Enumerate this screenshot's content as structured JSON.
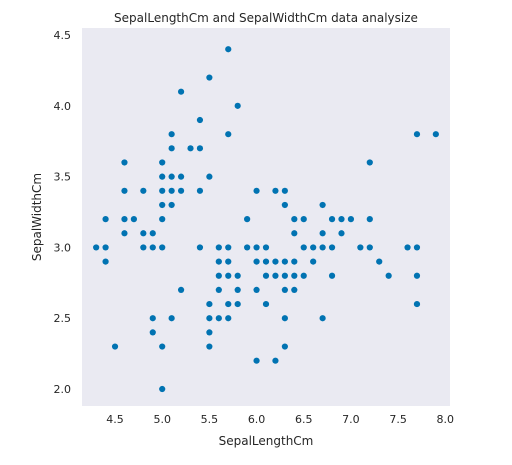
{
  "chart_data": {
    "type": "scatter",
    "title": "SepalLengthCm and SepalWidthCm data analysize",
    "xlabel": "SepalLengthCm",
    "ylabel": "SepalWidthCm",
    "xlim": [
      4.15,
      8.05
    ],
    "ylim": [
      1.88,
      4.55
    ],
    "xticks": [
      "4.5",
      "5.0",
      "5.5",
      "6.0",
      "6.5",
      "7.0",
      "7.5",
      "8.0"
    ],
    "yticks": [
      "2.0",
      "2.5",
      "3.0",
      "3.5",
      "4.0",
      "4.5"
    ],
    "grid": false,
    "colors": {
      "plot_background": "#eaeaf2",
      "marker": "#0173b2"
    },
    "points": [
      [
        4.3,
        3.0
      ],
      [
        4.4,
        2.9
      ],
      [
        4.4,
        3.0
      ],
      [
        4.4,
        3.2
      ],
      [
        4.5,
        2.3
      ],
      [
        4.6,
        3.1
      ],
      [
        4.6,
        3.2
      ],
      [
        4.6,
        3.4
      ],
      [
        4.6,
        3.6
      ],
      [
        4.7,
        3.2
      ],
      [
        4.8,
        3.0
      ],
      [
        4.8,
        3.1
      ],
      [
        4.8,
        3.4
      ],
      [
        4.9,
        2.4
      ],
      [
        4.9,
        2.5
      ],
      [
        4.9,
        3.0
      ],
      [
        4.9,
        3.1
      ],
      [
        5.0,
        2.0
      ],
      [
        5.0,
        2.3
      ],
      [
        5.0,
        3.0
      ],
      [
        5.0,
        3.2
      ],
      [
        5.0,
        3.3
      ],
      [
        5.0,
        3.4
      ],
      [
        5.0,
        3.5
      ],
      [
        5.0,
        3.6
      ],
      [
        5.1,
        2.5
      ],
      [
        5.1,
        3.3
      ],
      [
        5.1,
        3.4
      ],
      [
        5.1,
        3.5
      ],
      [
        5.1,
        3.7
      ],
      [
        5.1,
        3.8
      ],
      [
        5.2,
        2.7
      ],
      [
        5.2,
        3.4
      ],
      [
        5.2,
        3.5
      ],
      [
        5.2,
        4.1
      ],
      [
        5.3,
        3.7
      ],
      [
        5.4,
        3.0
      ],
      [
        5.4,
        3.4
      ],
      [
        5.4,
        3.7
      ],
      [
        5.4,
        3.9
      ],
      [
        5.5,
        2.3
      ],
      [
        5.5,
        2.4
      ],
      [
        5.5,
        2.5
      ],
      [
        5.5,
        2.6
      ],
      [
        5.5,
        3.5
      ],
      [
        5.5,
        4.2
      ],
      [
        5.6,
        2.5
      ],
      [
        5.6,
        2.7
      ],
      [
        5.6,
        2.8
      ],
      [
        5.6,
        2.9
      ],
      [
        5.6,
        3.0
      ],
      [
        5.7,
        2.5
      ],
      [
        5.7,
        2.6
      ],
      [
        5.7,
        2.8
      ],
      [
        5.7,
        2.9
      ],
      [
        5.7,
        3.0
      ],
      [
        5.7,
        3.8
      ],
      [
        5.7,
        4.4
      ],
      [
        5.8,
        2.6
      ],
      [
        5.8,
        2.7
      ],
      [
        5.8,
        2.8
      ],
      [
        5.8,
        4.0
      ],
      [
        5.9,
        3.0
      ],
      [
        5.9,
        3.2
      ],
      [
        6.0,
        2.2
      ],
      [
        6.0,
        2.7
      ],
      [
        6.0,
        2.9
      ],
      [
        6.0,
        3.0
      ],
      [
        6.0,
        3.4
      ],
      [
        6.1,
        2.6
      ],
      [
        6.1,
        2.8
      ],
      [
        6.1,
        2.9
      ],
      [
        6.1,
        3.0
      ],
      [
        6.2,
        2.2
      ],
      [
        6.2,
        2.8
      ],
      [
        6.2,
        2.9
      ],
      [
        6.2,
        3.4
      ],
      [
        6.3,
        2.3
      ],
      [
        6.3,
        2.5
      ],
      [
        6.3,
        2.7
      ],
      [
        6.3,
        2.8
      ],
      [
        6.3,
        2.9
      ],
      [
        6.3,
        3.3
      ],
      [
        6.3,
        3.4
      ],
      [
        6.4,
        2.7
      ],
      [
        6.4,
        2.8
      ],
      [
        6.4,
        2.9
      ],
      [
        6.4,
        3.1
      ],
      [
        6.4,
        3.2
      ],
      [
        6.5,
        2.8
      ],
      [
        6.5,
        3.0
      ],
      [
        6.5,
        3.2
      ],
      [
        6.6,
        2.9
      ],
      [
        6.6,
        3.0
      ],
      [
        6.7,
        2.5
      ],
      [
        6.7,
        3.0
      ],
      [
        6.7,
        3.1
      ],
      [
        6.7,
        3.3
      ],
      [
        6.8,
        2.8
      ],
      [
        6.8,
        3.0
      ],
      [
        6.8,
        3.2
      ],
      [
        6.9,
        3.1
      ],
      [
        6.9,
        3.2
      ],
      [
        7.0,
        3.2
      ],
      [
        7.1,
        3.0
      ],
      [
        7.2,
        3.0
      ],
      [
        7.2,
        3.2
      ],
      [
        7.2,
        3.6
      ],
      [
        7.3,
        2.9
      ],
      [
        7.4,
        2.8
      ],
      [
        7.6,
        3.0
      ],
      [
        7.7,
        2.6
      ],
      [
        7.7,
        2.8
      ],
      [
        7.7,
        3.0
      ],
      [
        7.7,
        3.8
      ],
      [
        7.9,
        3.8
      ]
    ]
  }
}
